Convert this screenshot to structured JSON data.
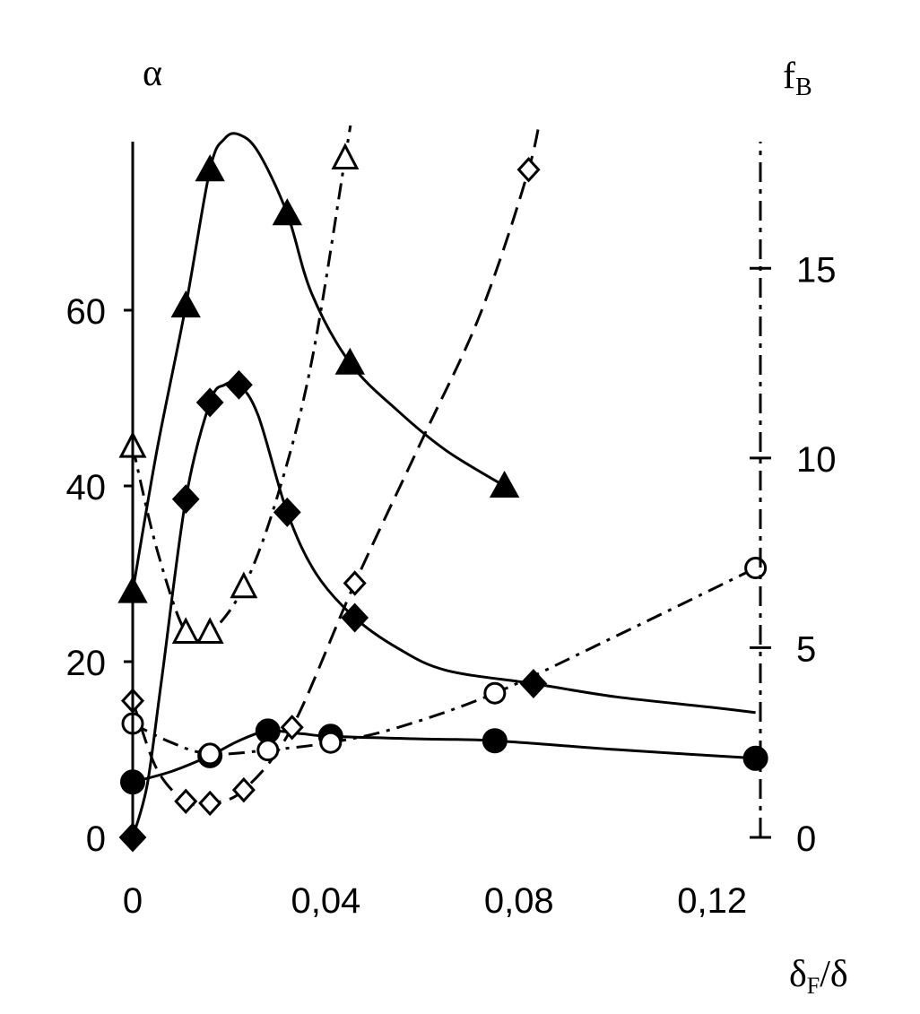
{
  "chart_data": {
    "type": "line",
    "xlabel_main": "δ",
    "xlabel_sub": "F",
    "xlabel_tail": "/δ",
    "ylabel_left": "α",
    "ylabel_right_main": "f",
    "ylabel_right_sub": "B",
    "xlim": [
      0,
      0.13
    ],
    "ylim_left": [
      0,
      80
    ],
    "ylim_right": [
      0,
      19
    ],
    "x_ticks": [
      0,
      0.04,
      0.08,
      0.12
    ],
    "x_tick_labels": [
      "0",
      "0,04",
      "0,08",
      "0,12"
    ],
    "y_left_ticks": [
      0,
      20,
      40,
      60
    ],
    "y_left_tick_labels": [
      "0",
      "20",
      "40",
      "60"
    ],
    "y_right_ticks": [
      0,
      5,
      10,
      15
    ],
    "y_right_tick_labels": [
      "0",
      "5",
      "10",
      "15"
    ],
    "grid": false,
    "series": [
      {
        "axis": "left",
        "marker": "filled-triangle",
        "line": "solid",
        "points": [
          [
            0,
            28
          ],
          [
            0.011,
            60.5
          ],
          [
            0.016,
            76
          ],
          [
            0.032,
            71
          ],
          [
            0.045,
            54
          ],
          [
            0.077,
            40
          ]
        ],
        "curve": [
          [
            0,
            28
          ],
          [
            0.005,
            44
          ],
          [
            0.011,
            60.5
          ],
          [
            0.016,
            76
          ],
          [
            0.019,
            79.5
          ],
          [
            0.022,
            80
          ],
          [
            0.026,
            78
          ],
          [
            0.032,
            71
          ],
          [
            0.037,
            62
          ],
          [
            0.045,
            54
          ],
          [
            0.055,
            48.5
          ],
          [
            0.065,
            44
          ],
          [
            0.077,
            40
          ]
        ]
      },
      {
        "axis": "left",
        "marker": "filled-diamond",
        "line": "solid",
        "points": [
          [
            0,
            0
          ],
          [
            0.011,
            38.5
          ],
          [
            0.016,
            49.5
          ],
          [
            0.022,
            51.5
          ],
          [
            0.032,
            37
          ],
          [
            0.046,
            25
          ],
          [
            0.083,
            17.5
          ]
        ],
        "curve": [
          [
            0,
            0
          ],
          [
            0.003,
            6
          ],
          [
            0.006,
            18
          ],
          [
            0.011,
            38.5
          ],
          [
            0.016,
            49.5
          ],
          [
            0.019,
            51.5
          ],
          [
            0.022,
            51.5
          ],
          [
            0.026,
            48
          ],
          [
            0.032,
            37
          ],
          [
            0.038,
            30
          ],
          [
            0.046,
            25
          ],
          [
            0.055,
            21.5
          ],
          [
            0.065,
            19
          ],
          [
            0.083,
            17.5
          ],
          [
            0.1,
            16
          ],
          [
            0.12,
            14.8
          ],
          [
            0.129,
            14.2
          ]
        ]
      },
      {
        "axis": "left",
        "marker": "filled-circle",
        "line": "solid",
        "points": [
          [
            0,
            6.3
          ],
          [
            0.016,
            9.3
          ],
          [
            0.028,
            12.1
          ],
          [
            0.041,
            11.5
          ],
          [
            0.075,
            11
          ],
          [
            0.129,
            9
          ]
        ],
        "curve": [
          [
            0,
            6.3
          ],
          [
            0.008,
            7.5
          ],
          [
            0.016,
            9.3
          ],
          [
            0.022,
            11
          ],
          [
            0.028,
            12.1
          ],
          [
            0.035,
            11.8
          ],
          [
            0.041,
            11.5
          ],
          [
            0.06,
            11.2
          ],
          [
            0.075,
            11
          ],
          [
            0.1,
            10
          ],
          [
            0.129,
            9
          ]
        ]
      },
      {
        "axis": "right",
        "marker": "open-triangle",
        "line": "dash-dot",
        "points": [
          [
            0,
            10.3
          ],
          [
            0.011,
            5.4
          ],
          [
            0.016,
            5.4
          ],
          [
            0.023,
            6.6
          ],
          [
            0.044,
            17.9
          ]
        ],
        "curve": [
          [
            0,
            10.3
          ],
          [
            0.005,
            7.6
          ],
          [
            0.011,
            5.4
          ],
          [
            0.016,
            5.4
          ],
          [
            0.023,
            6.6
          ],
          [
            0.03,
            9
          ],
          [
            0.037,
            12.5
          ],
          [
            0.044,
            17.9
          ],
          [
            0.046,
            19.5
          ]
        ]
      },
      {
        "axis": "right",
        "marker": "open-diamond",
        "line": "dashed",
        "points": [
          [
            0,
            3.6
          ],
          [
            0.011,
            0.95
          ],
          [
            0.016,
            0.9
          ],
          [
            0.023,
            1.25
          ],
          [
            0.033,
            2.9
          ],
          [
            0.046,
            6.7
          ],
          [
            0.082,
            17.6
          ]
        ],
        "curve": [
          [
            0,
            3.6
          ],
          [
            0.005,
            1.8
          ],
          [
            0.011,
            0.95
          ],
          [
            0.016,
            0.9
          ],
          [
            0.023,
            1.25
          ],
          [
            0.033,
            2.9
          ],
          [
            0.046,
            6.7
          ],
          [
            0.06,
            10.5
          ],
          [
            0.072,
            13.8
          ],
          [
            0.082,
            17.6
          ],
          [
            0.085,
            19.5
          ]
        ]
      },
      {
        "axis": "right",
        "marker": "open-circle",
        "line": "dash-dot",
        "points": [
          [
            0,
            3
          ],
          [
            0.016,
            2.2
          ],
          [
            0.028,
            2.3
          ],
          [
            0.041,
            2.5
          ],
          [
            0.075,
            3.8
          ],
          [
            0.129,
            7.1
          ]
        ],
        "curve": [
          [
            0,
            3
          ],
          [
            0.008,
            2.5
          ],
          [
            0.016,
            2.2
          ],
          [
            0.028,
            2.3
          ],
          [
            0.041,
            2.5
          ],
          [
            0.055,
            2.9
          ],
          [
            0.075,
            3.8
          ],
          [
            0.1,
            5.3
          ],
          [
            0.129,
            7.1
          ]
        ]
      }
    ]
  }
}
